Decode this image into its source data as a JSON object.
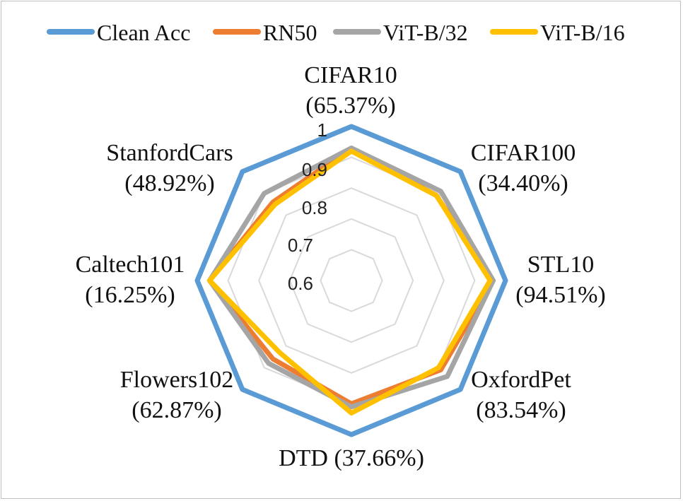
{
  "chart_data": {
    "type": "radar",
    "title": "",
    "axis_range": [
      0.5,
      1.0
    ],
    "ticks": [
      {
        "value": 0.6,
        "label": "0.6"
      },
      {
        "value": 0.7,
        "label": "0.7"
      },
      {
        "value": 0.8,
        "label": "0.8"
      },
      {
        "value": 0.9,
        "label": "0.9"
      },
      {
        "value": 1.0,
        "label": "1"
      }
    ],
    "categories": [
      {
        "name": "CIFAR10",
        "acc": "(65.37%)"
      },
      {
        "name": "CIFAR100",
        "acc": "(34.40%)"
      },
      {
        "name": "STL10",
        "acc": "(94.51%)"
      },
      {
        "name": "OxfordPet",
        "acc": "(83.54%)"
      },
      {
        "name": "DTD",
        "acc": "(37.66%)"
      },
      {
        "name": "Flowers102",
        "acc": "(62.87%)"
      },
      {
        "name": "Caltech101",
        "acc": "(16.25%)"
      },
      {
        "name": "StanfordCars",
        "acc": "(48.92%)"
      }
    ],
    "series": [
      {
        "name": "Clean Acc",
        "color": "#5b9bd5",
        "values": [
          1.0,
          1.0,
          1.0,
          1.0,
          1.0,
          1.0,
          1.0,
          1.0
        ]
      },
      {
        "name": "RN50",
        "color": "#ed7d31",
        "values": [
          0.93,
          0.89,
          0.96,
          0.91,
          0.9,
          0.86,
          0.96,
          0.86
        ]
      },
      {
        "name": "ViT-B/32",
        "color": "#a5a5a5",
        "values": [
          0.93,
          0.91,
          0.96,
          0.94,
          0.91,
          0.88,
          0.96,
          0.9
        ]
      },
      {
        "name": "ViT-B/16",
        "color": "#ffc000",
        "values": [
          0.92,
          0.89,
          0.95,
          0.9,
          0.93,
          0.83,
          0.96,
          0.85
        ]
      }
    ],
    "legend_position": "top",
    "grid": true
  }
}
